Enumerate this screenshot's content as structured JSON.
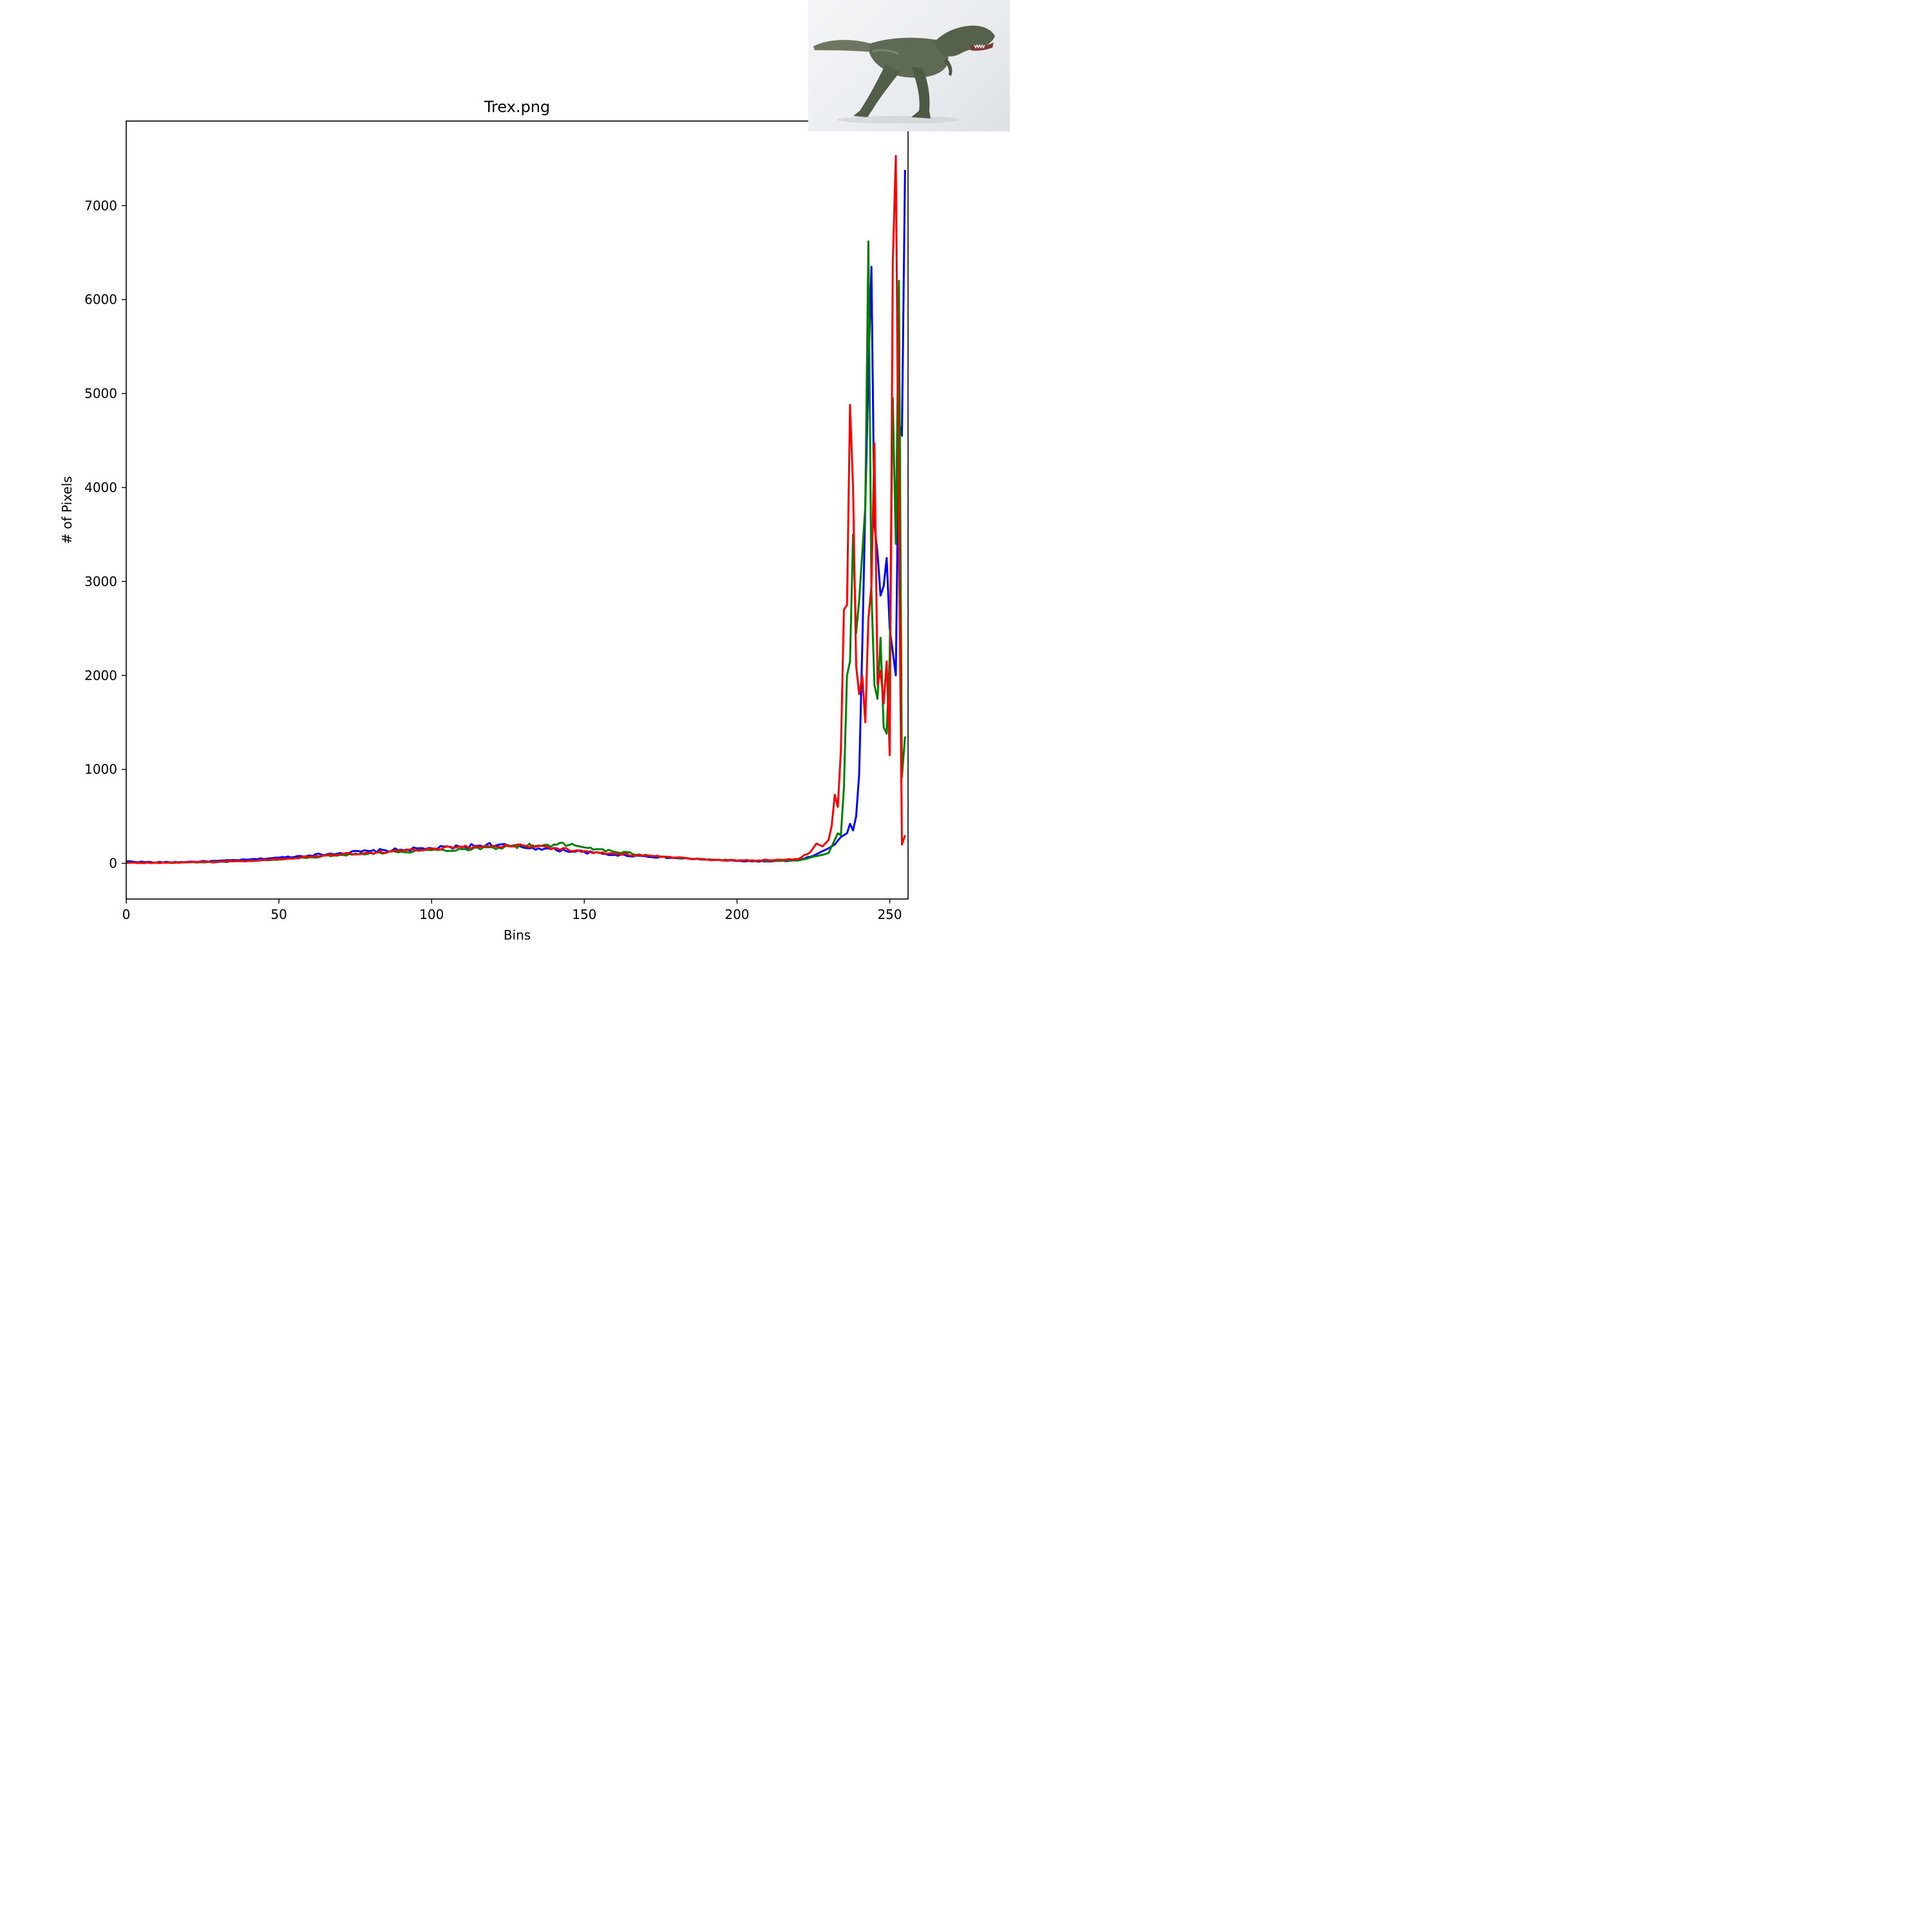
{
  "chart_data": {
    "type": "line",
    "title": "Trex.png",
    "xlabel": "Bins",
    "ylabel": "# of Pixels",
    "xlim": [
      0,
      256
    ],
    "ylim": [
      -380,
      7900
    ],
    "grid": false,
    "xticks": [
      0,
      50,
      100,
      150,
      200,
      250
    ],
    "yticks": [
      0,
      1000,
      2000,
      3000,
      4000,
      5000,
      6000,
      7000
    ],
    "colors": {
      "blue": "#0000ff",
      "green": "#008000",
      "red": "#ff0000"
    },
    "series": [
      {
        "color": "#0000ff",
        "anchors": [
          [
            0,
            20
          ],
          [
            10,
            10
          ],
          [
            20,
            15
          ],
          [
            30,
            25
          ],
          [
            40,
            40
          ],
          [
            50,
            60
          ],
          [
            60,
            85
          ],
          [
            70,
            110
          ],
          [
            80,
            130
          ],
          [
            90,
            145
          ],
          [
            100,
            160
          ],
          [
            110,
            175
          ],
          [
            118,
            200
          ],
          [
            125,
            185
          ],
          [
            135,
            160
          ],
          [
            150,
            120
          ],
          [
            160,
            90
          ],
          [
            170,
            75
          ],
          [
            180,
            55
          ],
          [
            190,
            40
          ],
          [
            200,
            25
          ],
          [
            210,
            20
          ],
          [
            220,
            30
          ],
          [
            225,
            80
          ],
          [
            228,
            130
          ],
          [
            230,
            160
          ],
          [
            232,
            200
          ],
          [
            234,
            280
          ],
          [
            236,
            320
          ],
          [
            237,
            420
          ],
          [
            238,
            350
          ],
          [
            239,
            500
          ],
          [
            240,
            950
          ],
          [
            241,
            2300
          ],
          [
            242,
            3800
          ],
          [
            243,
            5200
          ],
          [
            244,
            6350
          ],
          [
            245,
            3600
          ],
          [
            246,
            3300
          ],
          [
            247,
            2850
          ],
          [
            248,
            2950
          ],
          [
            249,
            3250
          ],
          [
            250,
            2500
          ],
          [
            251,
            2250
          ],
          [
            252,
            2000
          ],
          [
            253,
            4700
          ],
          [
            254,
            4550
          ],
          [
            255,
            7380
          ]
        ]
      },
      {
        "color": "#008000",
        "anchors": [
          [
            0,
            5
          ],
          [
            10,
            5
          ],
          [
            20,
            10
          ],
          [
            30,
            15
          ],
          [
            40,
            25
          ],
          [
            50,
            40
          ],
          [
            60,
            65
          ],
          [
            70,
            90
          ],
          [
            80,
            110
          ],
          [
            90,
            125
          ],
          [
            100,
            140
          ],
          [
            110,
            150
          ],
          [
            120,
            170
          ],
          [
            130,
            185
          ],
          [
            140,
            200
          ],
          [
            145,
            195
          ],
          [
            150,
            170
          ],
          [
            155,
            150
          ],
          [
            160,
            120
          ],
          [
            170,
            90
          ],
          [
            180,
            60
          ],
          [
            190,
            40
          ],
          [
            200,
            30
          ],
          [
            210,
            25
          ],
          [
            220,
            30
          ],
          [
            225,
            70
          ],
          [
            228,
            90
          ],
          [
            230,
            110
          ],
          [
            232,
            250
          ],
          [
            233,
            320
          ],
          [
            234,
            300
          ],
          [
            235,
            800
          ],
          [
            236,
            2000
          ],
          [
            237,
            2150
          ],
          [
            238,
            3500
          ],
          [
            239,
            2450
          ],
          [
            240,
            2800
          ],
          [
            241,
            3300
          ],
          [
            242,
            3800
          ],
          [
            243,
            6620
          ],
          [
            244,
            2900
          ],
          [
            245,
            1900
          ],
          [
            246,
            1750
          ],
          [
            247,
            2400
          ],
          [
            248,
            1450
          ],
          [
            249,
            1380
          ],
          [
            250,
            2200
          ],
          [
            251,
            4950
          ],
          [
            252,
            3400
          ],
          [
            253,
            6200
          ],
          [
            254,
            920
          ],
          [
            255,
            1350
          ]
        ]
      },
      {
        "color": "#ff0000",
        "anchors": [
          [
            0,
            5
          ],
          [
            10,
            5
          ],
          [
            20,
            10
          ],
          [
            30,
            15
          ],
          [
            40,
            25
          ],
          [
            50,
            45
          ],
          [
            60,
            70
          ],
          [
            70,
            95
          ],
          [
            80,
            115
          ],
          [
            90,
            135
          ],
          [
            100,
            150
          ],
          [
            110,
            170
          ],
          [
            120,
            185
          ],
          [
            130,
            190
          ],
          [
            135,
            185
          ],
          [
            140,
            160
          ],
          [
            150,
            130
          ],
          [
            160,
            100
          ],
          [
            170,
            80
          ],
          [
            180,
            60
          ],
          [
            190,
            40
          ],
          [
            200,
            30
          ],
          [
            210,
            35
          ],
          [
            220,
            45
          ],
          [
            224,
            120
          ],
          [
            226,
            210
          ],
          [
            228,
            180
          ],
          [
            230,
            250
          ],
          [
            231,
            400
          ],
          [
            232,
            730
          ],
          [
            233,
            600
          ],
          [
            234,
            1200
          ],
          [
            235,
            2700
          ],
          [
            236,
            2750
          ],
          [
            237,
            4880
          ],
          [
            238,
            4000
          ],
          [
            239,
            2100
          ],
          [
            240,
            1800
          ],
          [
            241,
            2000
          ],
          [
            242,
            1500
          ],
          [
            243,
            2600
          ],
          [
            244,
            2950
          ],
          [
            245,
            4470
          ],
          [
            246,
            1900
          ],
          [
            247,
            2050
          ],
          [
            248,
            1700
          ],
          [
            249,
            2150
          ],
          [
            250,
            1150
          ],
          [
            251,
            6400
          ],
          [
            252,
            7530
          ],
          [
            253,
            3400
          ],
          [
            254,
            200
          ],
          [
            255,
            300
          ]
        ]
      }
    ]
  },
  "thumbnail": {
    "subject": "t-rex-figurine"
  }
}
